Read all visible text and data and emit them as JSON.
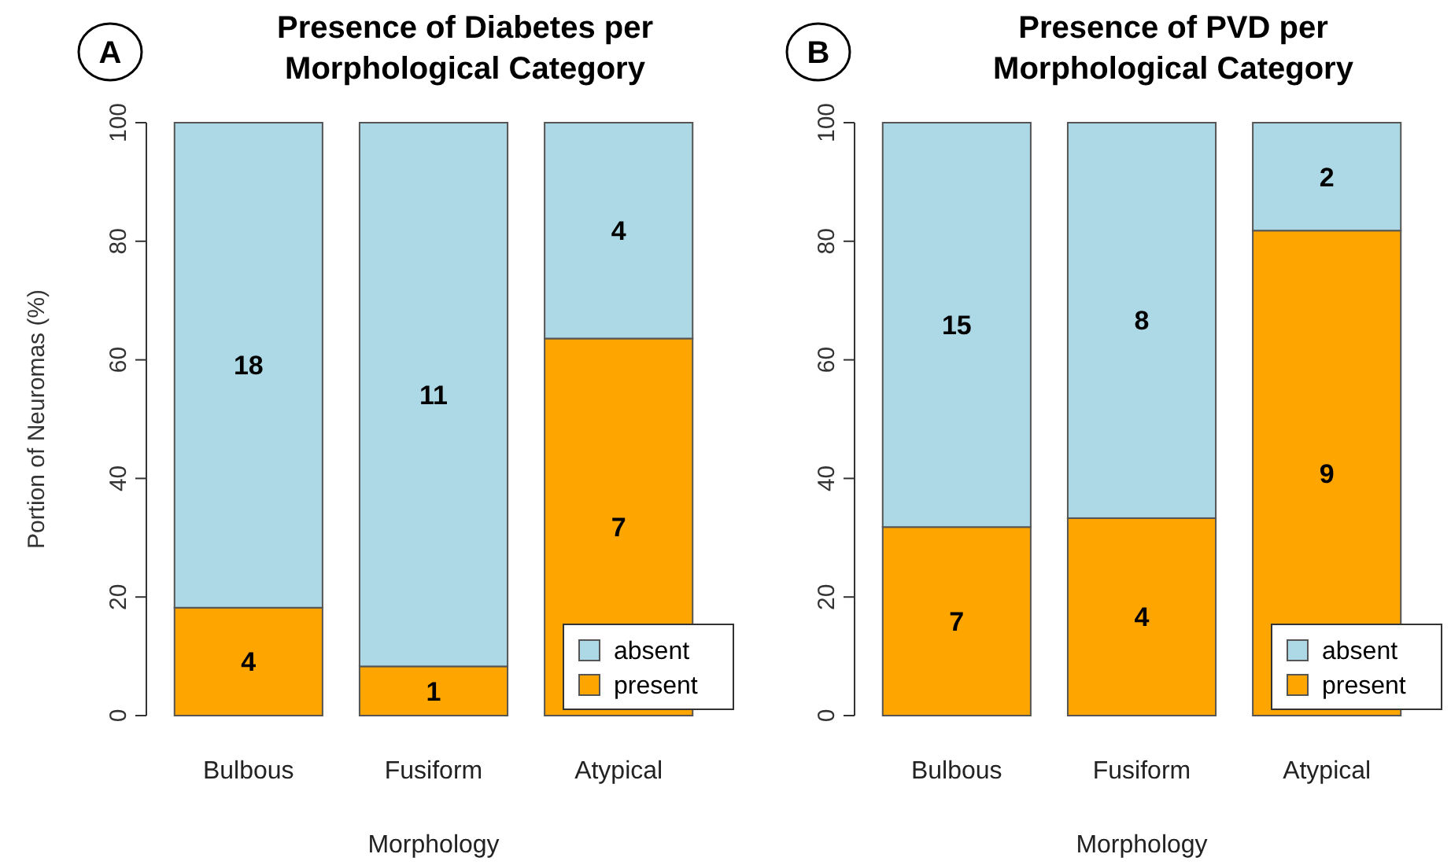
{
  "chart_data": [
    {
      "type": "bar",
      "title": "Presence of Diabetes per Morphological Category",
      "xlabel": "Morphology",
      "ylabel": "Portion of Neuromas (%)",
      "categories": [
        "Bulbous",
        "Fusiform",
        "Atypical"
      ],
      "stacked": true,
      "ylim": [
        0,
        100
      ],
      "yticks": [
        0,
        20,
        40,
        60,
        80,
        100
      ],
      "legend": "bottom right",
      "grid": false,
      "annotations": [
        "A",
        "4",
        "1",
        "7",
        "18",
        "11",
        "4"
      ],
      "series": [
        {
          "name": "present",
          "color": "#ffa500",
          "values": [
            18.2,
            8.3,
            63.6
          ]
        },
        {
          "name": "absent",
          "color": "#add8e6",
          "values": [
            81.8,
            91.7,
            36.4
          ]
        }
      ]
    },
    {
      "type": "bar",
      "title": "Presence of PVD per Morphological Category",
      "xlabel": "Morphology",
      "categories": [
        "Bulbous",
        "Fusiform",
        "Atypical"
      ],
      "stacked": true,
      "ylim": [
        0,
        100
      ],
      "yticks": [
        0,
        20,
        40,
        60,
        80,
        100
      ],
      "legend": "bottom right",
      "grid": false,
      "annotations": [
        "B",
        "7",
        "4",
        "9",
        "15",
        "8",
        "2"
      ],
      "series": [
        {
          "name": "present",
          "color": "#ffa500",
          "values": [
            31.8,
            33.3,
            81.8
          ]
        },
        {
          "name": "absent",
          "color": "#add8e6",
          "values": [
            68.2,
            66.7,
            18.2
          ]
        }
      ]
    }
  ]
}
